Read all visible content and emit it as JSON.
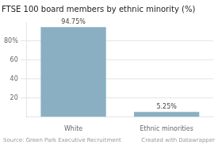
{
  "chart_data": {
    "type": "bar",
    "title": "FTSE 100 board members by ethnic minority (%)",
    "categories": [
      "White",
      "Ethnic minorities"
    ],
    "values": [
      94.75,
      5.25
    ],
    "value_labels": [
      "94.75%",
      "5.25%"
    ],
    "data_labels": true,
    "color": "#8aafc2",
    "ylim": [
      0,
      100
    ],
    "yticks": [
      20,
      40,
      60,
      {
        "value": 80,
        "label": "80%"
      }
    ],
    "grid": true,
    "annotations": [
      "Source: Green Park Executive Recruitment",
      "Created with Datawrapper"
    ]
  }
}
